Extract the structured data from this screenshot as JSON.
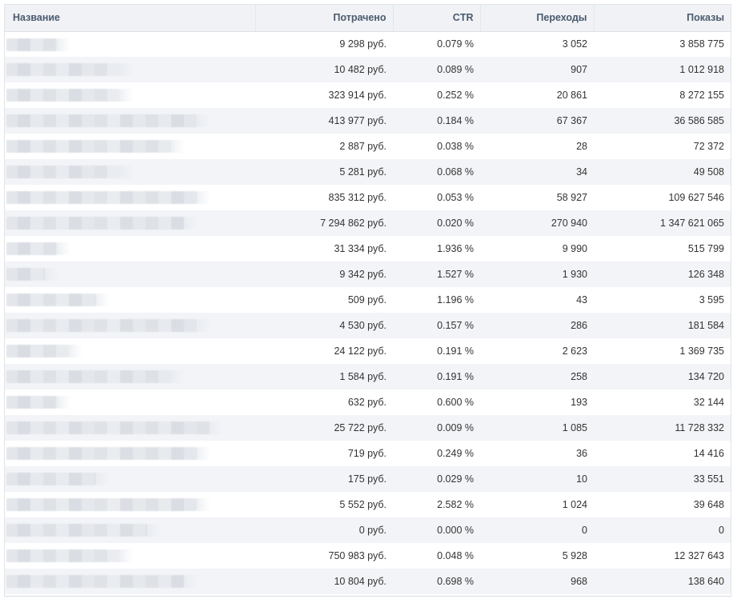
{
  "table": {
    "headers": {
      "name": "Название",
      "spent": "Потрачено",
      "ctr": "CTR",
      "clicks": "Переходы",
      "views": "Показы"
    },
    "rows": [
      {
        "spent": "9 298 руб.",
        "ctr": "0.079 %",
        "clicks": "3 052",
        "views": "3 858 775"
      },
      {
        "spent": "10 482 руб.",
        "ctr": "0.089 %",
        "clicks": "907",
        "views": "1 012 918"
      },
      {
        "spent": "323 914 руб.",
        "ctr": "0.252 %",
        "clicks": "20 861",
        "views": "8 272 155"
      },
      {
        "spent": "413 977 руб.",
        "ctr": "0.184 %",
        "clicks": "67 367",
        "views": "36 586 585"
      },
      {
        "spent": "2 887 руб.",
        "ctr": "0.038 %",
        "clicks": "28",
        "views": "72 372"
      },
      {
        "spent": "5 281 руб.",
        "ctr": "0.068 %",
        "clicks": "34",
        "views": "49 508"
      },
      {
        "spent": "835 312 руб.",
        "ctr": "0.053 %",
        "clicks": "58 927",
        "views": "109 627 546"
      },
      {
        "spent": "7 294 862 руб.",
        "ctr": "0.020 %",
        "clicks": "270 940",
        "views": "1 347 621 065"
      },
      {
        "spent": "31 334 руб.",
        "ctr": "1.936 %",
        "clicks": "9 990",
        "views": "515 799"
      },
      {
        "spent": "9 342 руб.",
        "ctr": "1.527 %",
        "clicks": "1 930",
        "views": "126 348"
      },
      {
        "spent": "509 руб.",
        "ctr": "1.196 %",
        "clicks": "43",
        "views": "3 595"
      },
      {
        "spent": "4 530 руб.",
        "ctr": "0.157 %",
        "clicks": "286",
        "views": "181 584"
      },
      {
        "spent": "24 122 руб.",
        "ctr": "0.191 %",
        "clicks": "2 623",
        "views": "1 369 735"
      },
      {
        "spent": "1 584 руб.",
        "ctr": "0.191 %",
        "clicks": "258",
        "views": "134 720"
      },
      {
        "spent": "632 руб.",
        "ctr": "0.600 %",
        "clicks": "193",
        "views": "32 144"
      },
      {
        "spent": "25 722 руб.",
        "ctr": "0.009 %",
        "clicks": "1 085",
        "views": "11 728 332"
      },
      {
        "spent": "719 руб.",
        "ctr": "0.249 %",
        "clicks": "36",
        "views": "14 416"
      },
      {
        "spent": "175 руб.",
        "ctr": "0.029 %",
        "clicks": "10",
        "views": "33 551"
      },
      {
        "spent": "5 552 руб.",
        "ctr": "2.582 %",
        "clicks": "1 024",
        "views": "39 648"
      },
      {
        "spent": "0 руб.",
        "ctr": "0.000 %",
        "clicks": "0",
        "views": "0"
      },
      {
        "spent": "750 983 руб.",
        "ctr": "0.048 %",
        "clicks": "5 928",
        "views": "12 327 643"
      },
      {
        "spent": "10 804 руб.",
        "ctr": "0.698 %",
        "clicks": "968",
        "views": "138 640"
      }
    ]
  }
}
